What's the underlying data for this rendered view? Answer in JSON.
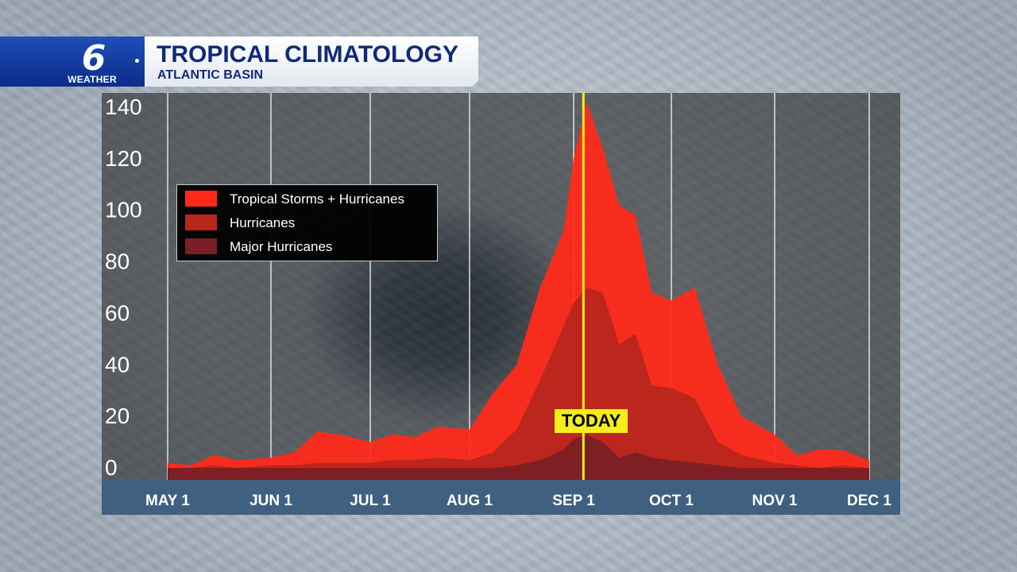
{
  "header": {
    "logo_number": "6",
    "logo_text": "WEATHER",
    "title": "TROPICAL CLIMATOLOGY",
    "subtitle": "ATLANTIC BASIN"
  },
  "colors": {
    "ts_plus_hurricanes": "#ff2a1a",
    "hurricanes": "#b8261c",
    "major_hurricanes": "#7a1f25",
    "today_line": "#f5ee1a",
    "brand_blue": "#0f2a7a"
  },
  "chart_data": {
    "type": "area",
    "title": "TROPICAL CLIMATOLOGY",
    "subtitle": "ATLANTIC BASIN",
    "xlabel": "",
    "ylabel": "",
    "ylim": [
      0,
      140
    ],
    "y_ticks": [
      "140",
      "120",
      "100",
      "80",
      "60",
      "40",
      "20",
      "0"
    ],
    "x_ticks": [
      "MAY 1",
      "JUN 1",
      "JUL 1",
      "AUG 1",
      "SEP 1",
      "OCT 1",
      "NOV 1",
      "DEC 1"
    ],
    "grid": "vertical",
    "legend": "upper-left",
    "today": {
      "label": "TODAY",
      "date": "Sep 4"
    },
    "x": [
      "May 1",
      "May 8",
      "May 15",
      "May 22",
      "Jun 1",
      "Jun 8",
      "Jun 15",
      "Jun 22",
      "Jul 1",
      "Jul 8",
      "Jul 15",
      "Jul 22",
      "Aug 1",
      "Aug 8",
      "Aug 15",
      "Aug 22",
      "Aug 29",
      "Sep 1",
      "Sep 5",
      "Sep 10",
      "Sep 15",
      "Sep 20",
      "Sep 25",
      "Oct 1",
      "Oct 8",
      "Oct 15",
      "Oct 22",
      "Nov 1",
      "Nov 8",
      "Nov 15",
      "Nov 22",
      "Dec 1"
    ],
    "series": [
      {
        "name": "Tropical Storms + Hurricanes",
        "values": [
          2,
          1,
          5,
          3,
          4,
          6,
          14,
          13,
          10,
          13,
          12,
          16,
          15,
          29,
          40,
          70,
          92,
          120,
          142,
          124,
          102,
          98,
          68,
          65,
          70,
          40,
          20,
          13,
          5,
          7,
          7,
          3
        ]
      },
      {
        "name": "Hurricanes",
        "values": [
          0,
          0,
          1,
          0,
          1,
          1,
          2,
          2,
          2,
          3,
          3,
          4,
          3,
          6,
          15,
          34,
          55,
          64,
          70,
          68,
          48,
          52,
          32,
          31,
          27,
          10,
          5,
          2,
          1,
          0,
          1,
          0
        ]
      },
      {
        "name": "Major Hurricanes",
        "values": [
          0,
          0,
          0,
          0,
          0,
          0,
          0,
          0,
          0,
          0,
          0,
          0,
          0,
          0,
          1,
          3,
          7,
          11,
          13,
          10,
          4,
          6,
          4,
          3,
          2,
          1,
          0,
          0,
          0,
          0,
          0,
          0
        ]
      }
    ]
  }
}
